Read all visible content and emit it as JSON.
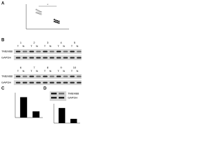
{
  "panels": {
    "a": {
      "label": "A",
      "asterisk": "*",
      "ylim": [
        0,
        1
      ],
      "groups": [
        {
          "values": [
            0.78,
            0.74,
            0.71,
            0.69,
            0.66,
            0.64,
            0.62,
            0.6
          ]
        },
        {
          "values": [
            0.38,
            0.35,
            0.33,
            0.31,
            0.3,
            0.28,
            0.26,
            0.24
          ]
        }
      ]
    },
    "b": {
      "label": "B",
      "pair": [
        "T",
        "N"
      ],
      "bands": [
        "TMEM88",
        "GAPDH"
      ],
      "rows": [
        {
          "lanes": [
            "1",
            "2",
            "3",
            "4",
            "5"
          ]
        },
        {
          "lanes": [
            "6",
            "7",
            "8",
            "9",
            "10"
          ]
        }
      ]
    },
    "c": {
      "label": "C",
      "ylim": [
        0,
        1
      ],
      "values": [
        0.82,
        0.25
      ]
    },
    "d": {
      "label": "D",
      "bands": [
        "TMEM88",
        "GAPDH"
      ],
      "ylim": [
        0,
        1
      ],
      "values": [
        0.78,
        0.22
      ]
    }
  }
}
